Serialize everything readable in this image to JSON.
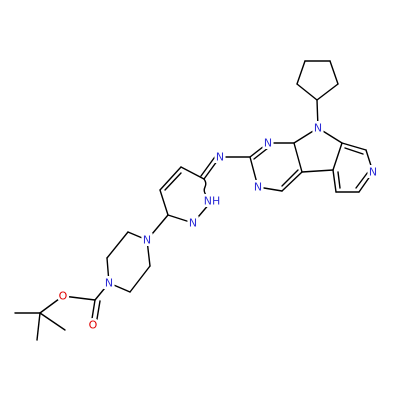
{
  "atoms": [
    "N",
    "N",
    "N",
    "N",
    "N",
    "NH",
    "N",
    "N",
    "N",
    "O",
    "O"
  ]
}
